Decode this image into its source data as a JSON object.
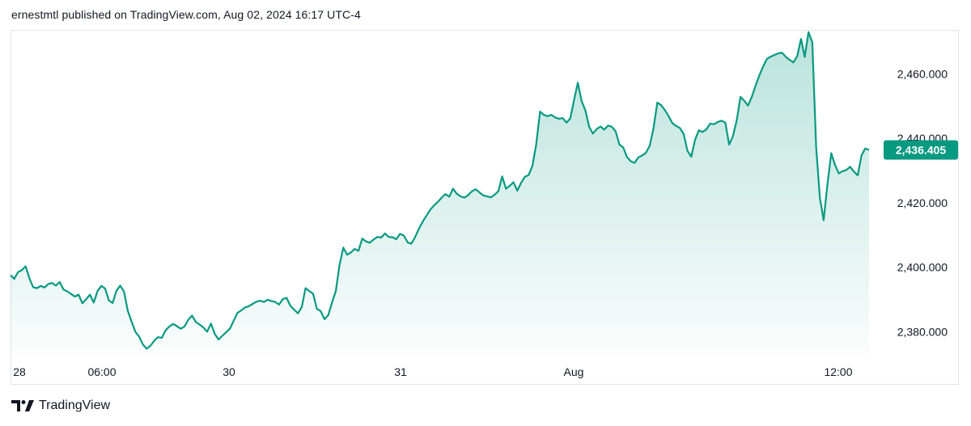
{
  "header": {
    "published_text": "ernestmtl published on TradingView.com, Aug 02, 2024 16:17 UTC-4"
  },
  "footer": {
    "brand": "TradingView"
  },
  "colors": {
    "line": "#089981",
    "fill_top": "#089981",
    "label_bg": "#089981",
    "grid_border": "#e0e3eb"
  },
  "chart_data": {
    "type": "area",
    "grid": false,
    "x_ticks": [
      "28",
      "06:00",
      "30",
      "31",
      "Aug",
      "12:00"
    ],
    "y_ticks": [
      "2,460.000",
      "2,440.000",
      "2,420.000",
      "2,400.000",
      "2,380.000"
    ],
    "ylim": [
      2371,
      2476
    ],
    "last_value_label": "2,436.405",
    "series": [
      {
        "values": [
          2397.5,
          2396.4,
          2398.5,
          2399.1,
          2400.3,
          2396.5,
          2393.8,
          2393.5,
          2394.2,
          2393.7,
          2394.8,
          2395.1,
          2394.3,
          2395.4,
          2393.1,
          2392.5,
          2391.7,
          2390.9,
          2391.5,
          2388.8,
          2390.1,
          2391.5,
          2389.0,
          2392.6,
          2394.2,
          2393.4,
          2389.7,
          2388.9,
          2392.7,
          2394.3,
          2392.5,
          2386.5,
          2383.1,
          2380.0,
          2378.5,
          2376.0,
          2374.7,
          2375.6,
          2377.2,
          2378.3,
          2378.1,
          2380.4,
          2381.6,
          2382.4,
          2381.7,
          2380.9,
          2381.6,
          2383.7,
          2385.0,
          2383.0,
          2382.2,
          2381.3,
          2380.0,
          2382.5,
          2379.3,
          2377.6,
          2378.7,
          2379.8,
          2380.9,
          2383.4,
          2385.8,
          2386.6,
          2387.5,
          2387.9,
          2388.6,
          2389.3,
          2389.6,
          2389.2,
          2389.9,
          2389.5,
          2389.2,
          2388.4,
          2390.1,
          2390.5,
          2388.0,
          2386.8,
          2385.7,
          2387.6,
          2393.5,
          2392.6,
          2391.8,
          2387.1,
          2386.4,
          2383.9,
          2385.1,
          2389.0,
          2392.6,
          2400.7,
          2406.1,
          2403.9,
          2404.6,
          2405.7,
          2405.1,
          2408.9,
          2408.0,
          2407.6,
          2408.6,
          2409.4,
          2409.2,
          2410.5,
          2409.4,
          2409.3,
          2408.7,
          2410.4,
          2409.8,
          2407.7,
          2407.3,
          2409.4,
          2412.0,
          2414.2,
          2416.0,
          2417.9,
          2419.2,
          2420.3,
          2421.6,
          2422.7,
          2421.9,
          2424.4,
          2422.8,
          2422.0,
          2421.6,
          2422.4,
          2423.6,
          2424.2,
          2423.2,
          2422.3,
          2422.0,
          2421.7,
          2422.5,
          2423.6,
          2428.2,
          2424.4,
          2425.3,
          2426.4,
          2423.8,
          2426.2,
          2428.1,
          2428.6,
          2431.5,
          2438.2,
          2448.3,
          2447.3,
          2446.9,
          2447.3,
          2446.5,
          2446.1,
          2446.3,
          2444.9,
          2446.2,
          2451.9,
          2457.3,
          2451.6,
          2448.7,
          2443.6,
          2441.5,
          2442.9,
          2443.7,
          2442.7,
          2444.0,
          2443.6,
          2442.2,
          2438.1,
          2437.2,
          2434.2,
          2432.9,
          2432.4,
          2434.1,
          2434.7,
          2435.5,
          2437.7,
          2443.1,
          2451.1,
          2450.4,
          2448.8,
          2446.9,
          2444.7,
          2443.9,
          2443.2,
          2441.3,
          2436.1,
          2434.3,
          2439.6,
          2442.5,
          2442.0,
          2442.8,
          2444.6,
          2444.4,
          2445.1,
          2445.5,
          2444.9,
          2438.1,
          2440.6,
          2445.5,
          2452.9,
          2451.7,
          2450.2,
          2452.9,
          2456.4,
          2459.6,
          2462.3,
          2464.7,
          2465.4,
          2465.9,
          2466.4,
          2466.6,
          2465.3,
          2464.4,
          2463.6,
          2465.5,
          2470.9,
          2465.3,
          2473.0,
          2469.8,
          2437.5,
          2421.6,
          2414.6,
          2425.8,
          2435.4,
          2431.8,
          2429.1,
          2429.8,
          2430.2,
          2431.2,
          2429.7,
          2428.5,
          2434.7,
          2436.9,
          2436.4
        ]
      }
    ]
  }
}
